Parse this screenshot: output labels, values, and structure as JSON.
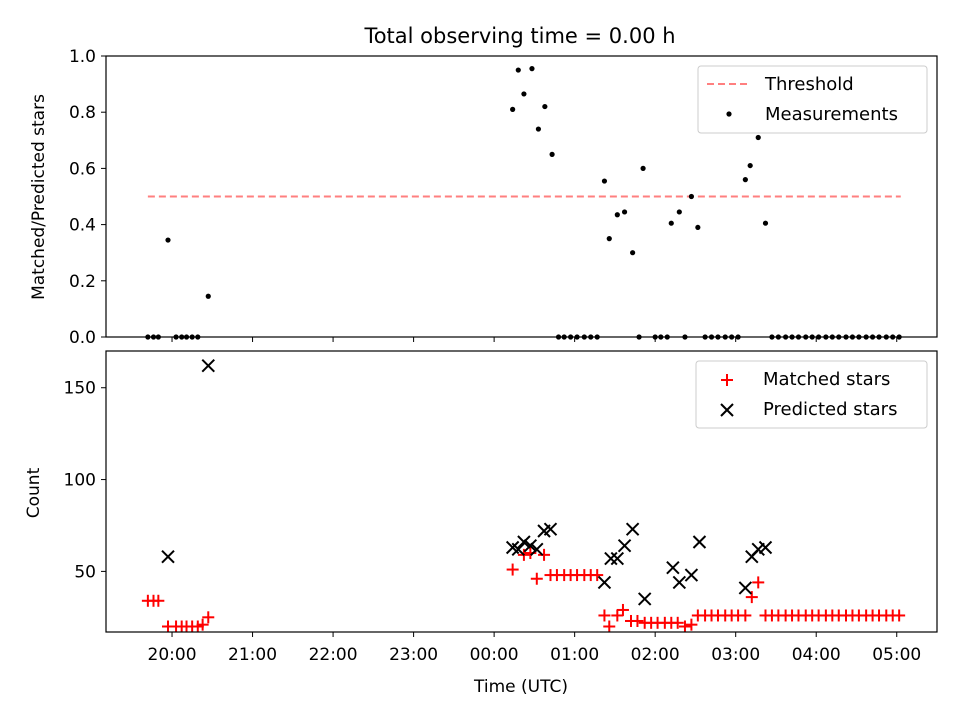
{
  "chart_data": {
    "title": "Total observing time = 0.00 h",
    "xlabel": "Time (UTC)",
    "xticks": [
      "20:00",
      "21:00",
      "22:00",
      "23:00",
      "00:00",
      "01:00",
      "02:00",
      "03:00",
      "04:00",
      "05:00"
    ],
    "xlim_hours": [
      19.18,
      29.5
    ],
    "panels": [
      {
        "type": "scatter",
        "ylabel": "Matched/Predicted stars",
        "ylim": [
          0.0,
          1.0
        ],
        "yticks": [
          "0.0",
          "0.2",
          "0.4",
          "0.6",
          "0.8",
          "1.0"
        ],
        "legend": {
          "placement": "top-right",
          "entries": [
            "Threshold",
            "Measurements"
          ]
        },
        "threshold": {
          "name": "Threshold",
          "y": 0.5,
          "x_range": [
            19.7,
            29.05
          ],
          "color": "#ff7f7f",
          "style": "dashed"
        },
        "series": [
          {
            "name": "Measurements",
            "color": "#000000",
            "marker": "dot",
            "x": [
              19.7,
              19.77,
              19.83,
              19.95,
              20.05,
              20.12,
              20.18,
              20.25,
              20.32,
              20.45,
              24.23,
              24.3,
              24.37,
              24.47,
              24.55,
              24.63,
              24.72,
              24.8,
              24.87,
              24.95,
              25.03,
              25.12,
              25.2,
              25.28,
              25.37,
              25.43,
              25.53,
              25.62,
              25.72,
              25.8,
              25.85,
              26.0,
              26.07,
              26.15,
              26.2,
              26.3,
              26.37,
              26.45,
              26.53,
              26.62,
              26.7,
              26.78,
              26.87,
              26.95,
              27.03,
              27.12,
              27.18,
              27.28,
              27.37,
              27.45,
              27.53,
              27.62,
              27.7,
              27.78,
              27.87,
              27.95,
              28.03,
              28.12,
              28.2,
              28.28,
              28.37,
              28.45,
              28.53,
              28.62,
              28.7,
              28.78,
              28.87,
              28.95,
              29.03
            ],
            "y": [
              0.0,
              0.0,
              0.0,
              0.345,
              0.0,
              0.0,
              0.0,
              0.0,
              0.0,
              0.145,
              0.81,
              0.95,
              0.865,
              0.955,
              0.74,
              0.82,
              0.65,
              0.0,
              0.0,
              0.0,
              0.0,
              0.0,
              0.0,
              0.0,
              0.555,
              0.35,
              0.435,
              0.445,
              0.3,
              0.0,
              0.6,
              0.0,
              0.0,
              0.0,
              0.405,
              0.445,
              0.0,
              0.5,
              0.39,
              0.0,
              0.0,
              0.0,
              0.0,
              0.0,
              0.0,
              0.56,
              0.61,
              0.71,
              0.405,
              0.0,
              0.0,
              0.0,
              0.0,
              0.0,
              0.0,
              0.0,
              0.0,
              0.0,
              0.0,
              0.0,
              0.0,
              0.0,
              0.0,
              0.0,
              0.0,
              0.0,
              0.0,
              0.0,
              0.0
            ]
          }
        ]
      },
      {
        "type": "scatter",
        "ylabel": "Count",
        "ylim": [
          17,
          170
        ],
        "yticks": [
          "50",
          "100",
          "150"
        ],
        "legend": {
          "placement": "top-right",
          "entries": [
            "Matched stars",
            "Predicted stars"
          ]
        },
        "series": [
          {
            "name": "Matched stars",
            "color": "#ff0000",
            "marker": "plus",
            "x": [
              19.7,
              19.77,
              19.83,
              19.95,
              20.05,
              20.12,
              20.18,
              20.25,
              20.32,
              20.38,
              20.45,
              24.23,
              24.37,
              24.45,
              24.53,
              24.62,
              24.7,
              24.78,
              24.87,
              24.95,
              25.03,
              25.12,
              25.2,
              25.28,
              25.37,
              25.43,
              25.53,
              25.6,
              25.7,
              25.78,
              25.87,
              25.95,
              26.03,
              26.12,
              26.2,
              26.28,
              26.37,
              26.45,
              26.53,
              26.62,
              26.7,
              26.78,
              26.87,
              26.95,
              27.03,
              27.12,
              27.2,
              27.28,
              27.37,
              27.45,
              27.53,
              27.62,
              27.7,
              27.78,
              27.87,
              27.95,
              28.03,
              28.12,
              28.2,
              28.28,
              28.37,
              28.45,
              28.53,
              28.62,
              28.7,
              28.78,
              28.87,
              28.95,
              29.03
            ],
            "y": [
              34,
              34,
              34,
              20,
              20,
              20,
              20,
              20,
              20,
              21,
              25,
              51,
              59,
              60,
              46,
              59,
              48,
              48,
              48,
              48,
              48,
              48,
              48,
              48,
              26,
              20,
              26,
              29,
              23,
              23,
              22,
              22,
              22,
              22,
              22,
              22,
              20,
              21,
              26,
              26,
              26,
              26,
              26,
              26,
              26,
              26,
              36,
              44,
              26,
              26,
              26,
              26,
              26,
              26,
              26,
              26,
              26,
              26,
              26,
              26,
              26,
              26,
              26,
              26,
              26,
              26,
              26,
              26,
              26
            ]
          },
          {
            "name": "Predicted stars",
            "color": "#000000",
            "marker": "x",
            "x": [
              19.95,
              20.45,
              24.23,
              24.3,
              24.37,
              24.45,
              24.53,
              24.62,
              24.7,
              25.37,
              25.45,
              25.53,
              25.62,
              25.72,
              25.87,
              26.22,
              26.3,
              26.45,
              26.55,
              27.12,
              27.2,
              27.28,
              27.37
            ],
            "y": [
              58,
              162,
              63,
              62,
              66,
              64,
              62,
              72,
              73,
              44,
              57,
              57,
              64,
              73,
              35,
              52,
              44,
              48,
              66,
              41,
              58,
              62,
              63
            ]
          }
        ]
      }
    ]
  }
}
